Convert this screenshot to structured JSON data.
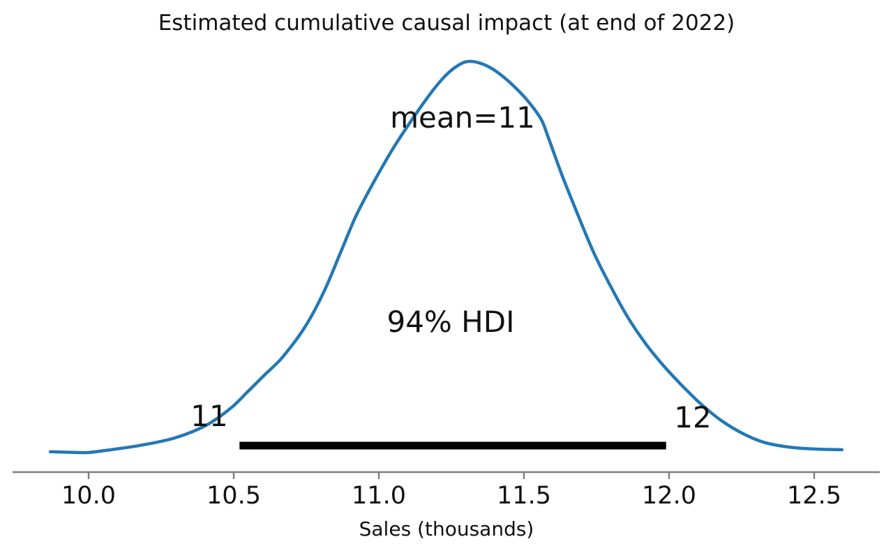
{
  "figure": {
    "background": "#ffffff"
  },
  "chart_data": {
    "type": "line",
    "subtype": "posterior-kde-density",
    "title": "Estimated cumulative causal impact (at end of 2022)",
    "xlabel": "Sales (thousands)",
    "ylabel": "",
    "x_range": [
      9.85,
      12.62
    ],
    "grid": false,
    "legend": "none",
    "curve_color": "#2478b4",
    "hdi_bar_color": "#000000",
    "axis_color": "#7f7f7f",
    "text_color": "#111111",
    "mean": 11,
    "mean_label": "mean=11",
    "hdi": {
      "prob_label": "94% HDI",
      "lower": 10.52,
      "upper": 11.99,
      "lower_label": "11",
      "upper_label": "12"
    },
    "xticks": [
      {
        "value": 10.0,
        "label": "10.0"
      },
      {
        "value": 10.5,
        "label": "10.5"
      },
      {
        "value": 11.0,
        "label": "11.0"
      },
      {
        "value": 11.5,
        "label": "11.5"
      },
      {
        "value": 12.0,
        "label": "12.0"
      },
      {
        "value": 12.5,
        "label": "12.5"
      }
    ],
    "kde_points": [
      [
        9.868,
        0.004
      ],
      [
        9.959,
        0.002
      ],
      [
        10.0,
        0.002
      ],
      [
        10.055,
        0.007
      ],
      [
        10.176,
        0.02
      ],
      [
        10.296,
        0.039
      ],
      [
        10.404,
        0.071
      ],
      [
        10.488,
        0.114
      ],
      [
        10.548,
        0.157
      ],
      [
        10.608,
        0.201
      ],
      [
        10.656,
        0.235
      ],
      [
        10.692,
        0.267
      ],
      [
        10.733,
        0.308
      ],
      [
        10.776,
        0.361
      ],
      [
        10.82,
        0.427
      ],
      [
        10.868,
        0.512
      ],
      [
        10.921,
        0.605
      ],
      [
        10.981,
        0.69
      ],
      [
        11.046,
        0.774
      ],
      [
        11.113,
        0.85
      ],
      [
        11.18,
        0.92
      ],
      [
        11.233,
        0.966
      ],
      [
        11.281,
        0.993
      ],
      [
        11.317,
        1.0
      ],
      [
        11.365,
        0.991
      ],
      [
        11.413,
        0.97
      ],
      [
        11.462,
        0.939
      ],
      [
        11.51,
        0.902
      ],
      [
        11.558,
        0.854
      ],
      [
        11.582,
        0.81
      ],
      [
        11.63,
        0.712
      ],
      [
        11.678,
        0.623
      ],
      [
        11.738,
        0.516
      ],
      [
        11.798,
        0.427
      ],
      [
        11.858,
        0.347
      ],
      [
        11.918,
        0.281
      ],
      [
        11.978,
        0.226
      ],
      [
        12.038,
        0.178
      ],
      [
        12.111,
        0.125
      ],
      [
        12.183,
        0.082
      ],
      [
        12.255,
        0.05
      ],
      [
        12.327,
        0.028
      ],
      [
        12.411,
        0.016
      ],
      [
        12.495,
        0.011
      ],
      [
        12.596,
        0.009
      ]
    ]
  }
}
